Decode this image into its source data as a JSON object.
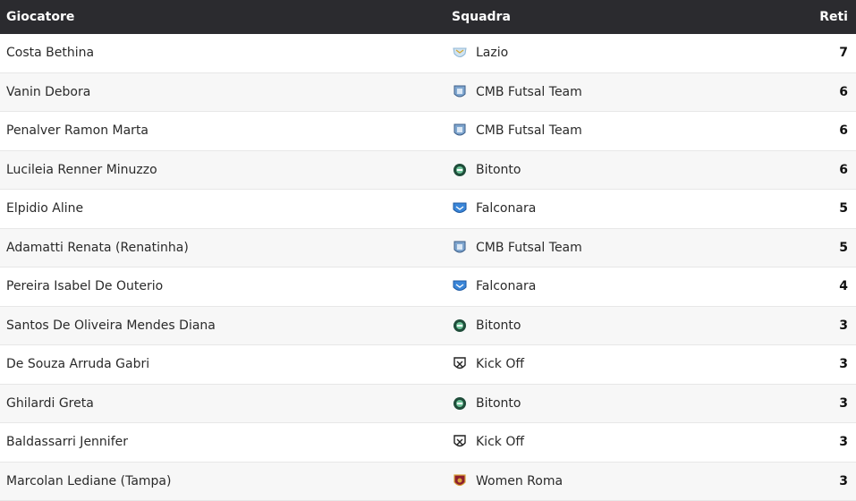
{
  "header": {
    "player": "Giocatore",
    "team": "Squadra",
    "goals": "Reti"
  },
  "rows": [
    {
      "player": "Costa Bethina",
      "team": "Lazio",
      "crest": "lazio-crest-icon",
      "goals": "7"
    },
    {
      "player": "Vanin Debora",
      "team": "CMB Futsal Team",
      "crest": "cmb-crest-icon",
      "goals": "6"
    },
    {
      "player": "Penalver Ramon Marta",
      "team": "CMB Futsal Team",
      "crest": "cmb-crest-icon",
      "goals": "6"
    },
    {
      "player": "Lucileia Renner Minuzzo",
      "team": "Bitonto",
      "crest": "bitonto-crest-icon",
      "goals": "6"
    },
    {
      "player": "Elpidio Aline",
      "team": "Falconara",
      "crest": "falconara-crest-icon",
      "goals": "5"
    },
    {
      "player": "Adamatti Renata (Renatinha)",
      "team": "CMB Futsal Team",
      "crest": "cmb-crest-icon",
      "goals": "5"
    },
    {
      "player": "Pereira Isabel De Outerio",
      "team": "Falconara",
      "crest": "falconara-crest-icon",
      "goals": "4"
    },
    {
      "player": "Santos De Oliveira Mendes Diana",
      "team": "Bitonto",
      "crest": "bitonto-crest-icon",
      "goals": "3"
    },
    {
      "player": "De Souza Arruda Gabri",
      "team": "Kick Off",
      "crest": "kickoff-crest-icon",
      "goals": "3"
    },
    {
      "player": "Ghilardi Greta",
      "team": "Bitonto",
      "crest": "bitonto-crest-icon",
      "goals": "3"
    },
    {
      "player": "Baldassarri Jennifer",
      "team": "Kick Off",
      "crest": "kickoff-crest-icon",
      "goals": "3"
    },
    {
      "player": "Marcolan Lediane (Tampa)",
      "team": "Women Roma",
      "crest": "roma-crest-icon",
      "goals": "3"
    }
  ],
  "colors": {
    "header_bg": "#2b2b2f",
    "row_alt": "#f7f7f7",
    "border": "#e7e7e7"
  }
}
